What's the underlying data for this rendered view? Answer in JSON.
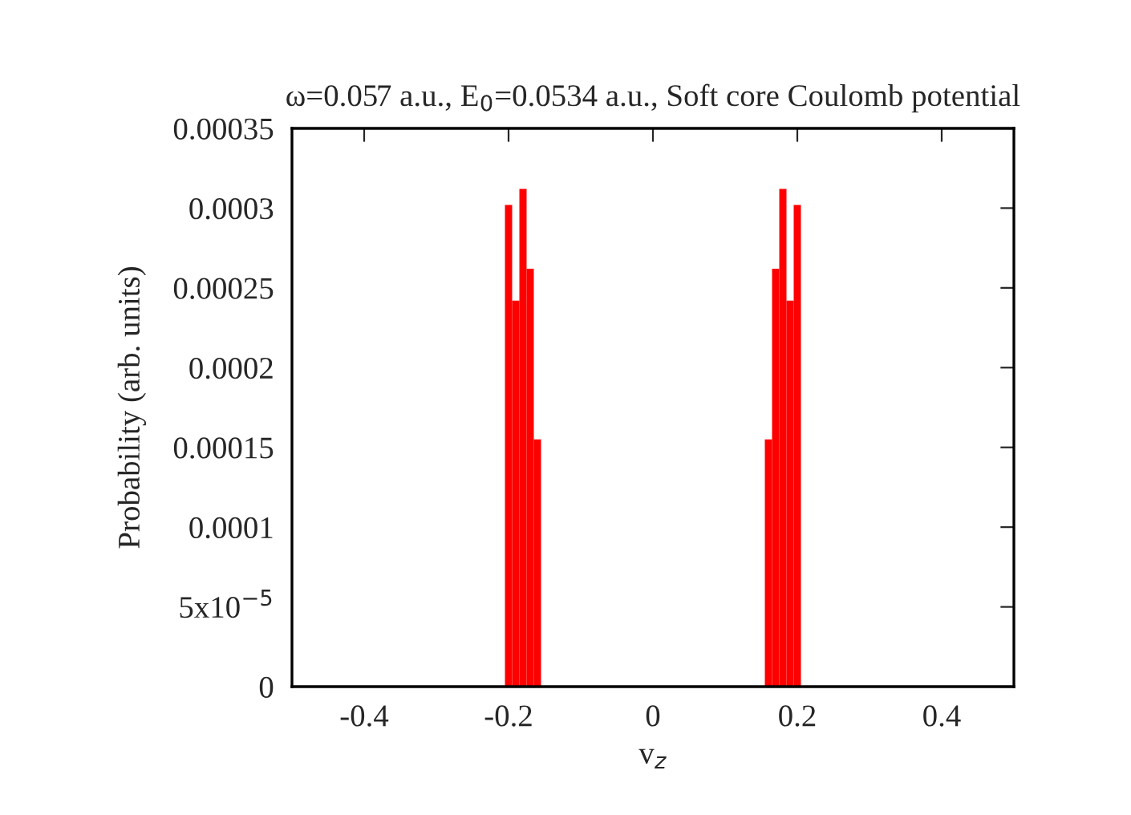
{
  "chart_data": {
    "type": "histogram",
    "title": "ω=0.057 a.u., E$_{0}$=0.0534 a.u., Soft core Coulomb potential",
    "xlabel": "v$_{z}$",
    "ylabel": "Probability (arb. units)",
    "bins": [
      -0.205,
      -0.195,
      -0.185,
      -0.175,
      -0.165,
      -0.155,
      -0.145,
      -0.135,
      -0.125,
      -0.115,
      -0.105,
      -0.095,
      -0.085,
      -0.075,
      -0.065,
      -0.055,
      -0.045,
      -0.035,
      -0.025,
      -0.015,
      -0.005,
      0.005,
      0.015,
      0.025,
      0.035,
      0.045,
      0.055,
      0.065,
      0.075,
      0.085,
      0.095,
      0.105,
      0.115,
      0.125,
      0.135,
      0.145,
      0.155,
      0.165,
      0.175,
      0.185,
      0.195,
      0.205
    ],
    "values": [
      0.000302,
      0.000242,
      0.000312,
      0.000262,
      0.000155,
      0,
      0,
      0,
      0,
      0,
      0,
      0,
      0,
      0,
      0,
      0,
      0,
      0,
      0,
      0,
      0,
      0,
      0,
      0,
      0,
      0,
      0,
      0,
      0,
      0,
      0,
      0,
      0,
      0,
      0,
      0,
      0.000155,
      0.000262,
      0.000312,
      0.000242,
      0.000302
    ],
    "color": "#ff0000",
    "xlim": [
      -0.5,
      0.5
    ],
    "xticks": [
      -0.4,
      -0.2,
      0,
      0.2,
      0.4
    ],
    "ylim": [
      0,
      0.00035
    ],
    "yticks": [
      0,
      {
        "value": 5e-05,
        "label": "5x10$^{−5}$"
      },
      0.0001,
      0.00015,
      0.0002,
      0.00025,
      0.0003,
      0.00035
    ],
    "grid": false,
    "legend": false
  }
}
